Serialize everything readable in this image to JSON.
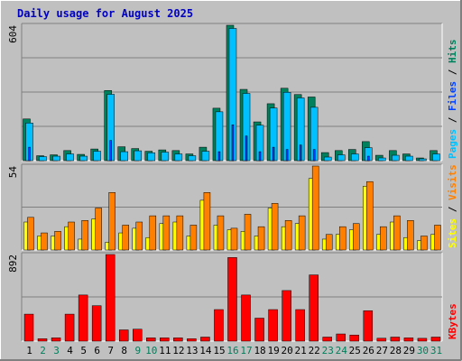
{
  "title": "Daily usage for August 2025",
  "colors": {
    "background": "#c0c0c0",
    "frame_light": "#ffffff",
    "frame_dark": "#808080",
    "title": "#0000c0",
    "grid": "#808080",
    "hits": "#00805c",
    "files": "#00c0ff",
    "pages": "#0040ff",
    "visits": "#ff8000",
    "sites": "#ffff00",
    "kbytes": "#ff0000",
    "weekday_label": "#000000",
    "weekend_label": "#00805c"
  },
  "chart_data": [
    {
      "type": "bar",
      "name": "hits-files-pages",
      "ymax_label": "604",
      "ymax": 604,
      "legend": [
        "Pages",
        "Files",
        "Hits"
      ],
      "legend_position": "right",
      "series": [
        {
          "name": "Hits",
          "values": [
            186,
            22,
            26,
            45,
            28,
            52,
            313,
            62,
            54,
            42,
            48,
            45,
            30,
            60,
            234,
            604,
            318,
            173,
            254,
            323,
            295,
            284,
            36,
            45,
            50,
            85,
            24,
            45,
            30,
            12,
            45
          ]
        },
        {
          "name": "Files",
          "values": [
            168,
            18,
            20,
            30,
            20,
            42,
            296,
            40,
            44,
            35,
            38,
            30,
            22,
            42,
            218,
            590,
            300,
            158,
            235,
            305,
            280,
            238,
            16,
            26,
            30,
            58,
            12,
            24,
            20,
            8,
            30
          ]
        },
        {
          "name": "Pages",
          "values": [
            60,
            0,
            0,
            0,
            0,
            0,
            90,
            0,
            0,
            0,
            0,
            0,
            0,
            0,
            40,
            160,
            110,
            40,
            60,
            50,
            70,
            50,
            0,
            0,
            0,
            20,
            0,
            0,
            0,
            0,
            0
          ]
        }
      ]
    },
    {
      "type": "bar",
      "name": "visits-sites",
      "ymax_label": "54",
      "ymax": 54,
      "legend": [
        "Sites",
        "Visits"
      ],
      "legend_position": "right",
      "series": [
        {
          "name": "Visits",
          "values": [
            21,
            11,
            12,
            18,
            19,
            27,
            37,
            16,
            18,
            22,
            22,
            22,
            16,
            37,
            22,
            14,
            23,
            15,
            30,
            19,
            22,
            54,
            10,
            15,
            17,
            44,
            15,
            22,
            19,
            9,
            16
          ]
        },
        {
          "name": "Sites",
          "values": [
            18,
            9,
            9,
            15,
            7,
            20,
            5,
            11,
            14,
            8,
            17,
            18,
            9,
            32,
            16,
            13,
            12,
            9,
            27,
            15,
            17,
            46,
            7,
            10,
            13,
            41,
            10,
            18,
            8,
            6,
            10
          ]
        }
      ]
    },
    {
      "type": "bar",
      "name": "kbytes",
      "ymax_label": "892",
      "ymax": 892,
      "legend": [
        "KBytes"
      ],
      "legend_position": "right",
      "series": [
        {
          "name": "KBytes",
          "values": [
            278,
            25,
            34,
            278,
            475,
            365,
            892,
            116,
            123,
            34,
            34,
            34,
            25,
            42,
            325,
            861,
            475,
            237,
            325,
            521,
            325,
            682,
            42,
            74,
            63,
            313,
            30,
            42,
            34,
            29,
            42
          ]
        }
      ]
    }
  ],
  "days": [
    "1",
    "2",
    "3",
    "4",
    "5",
    "6",
    "7",
    "8",
    "9",
    "10",
    "11",
    "12",
    "13",
    "14",
    "15",
    "16",
    "17",
    "18",
    "19",
    "20",
    "21",
    "22",
    "23",
    "24",
    "25",
    "26",
    "27",
    "28",
    "29",
    "30",
    "31"
  ],
  "weekend_days": [
    "2",
    "3",
    "9",
    "10",
    "16",
    "17",
    "23",
    "24",
    "30",
    "31"
  ]
}
